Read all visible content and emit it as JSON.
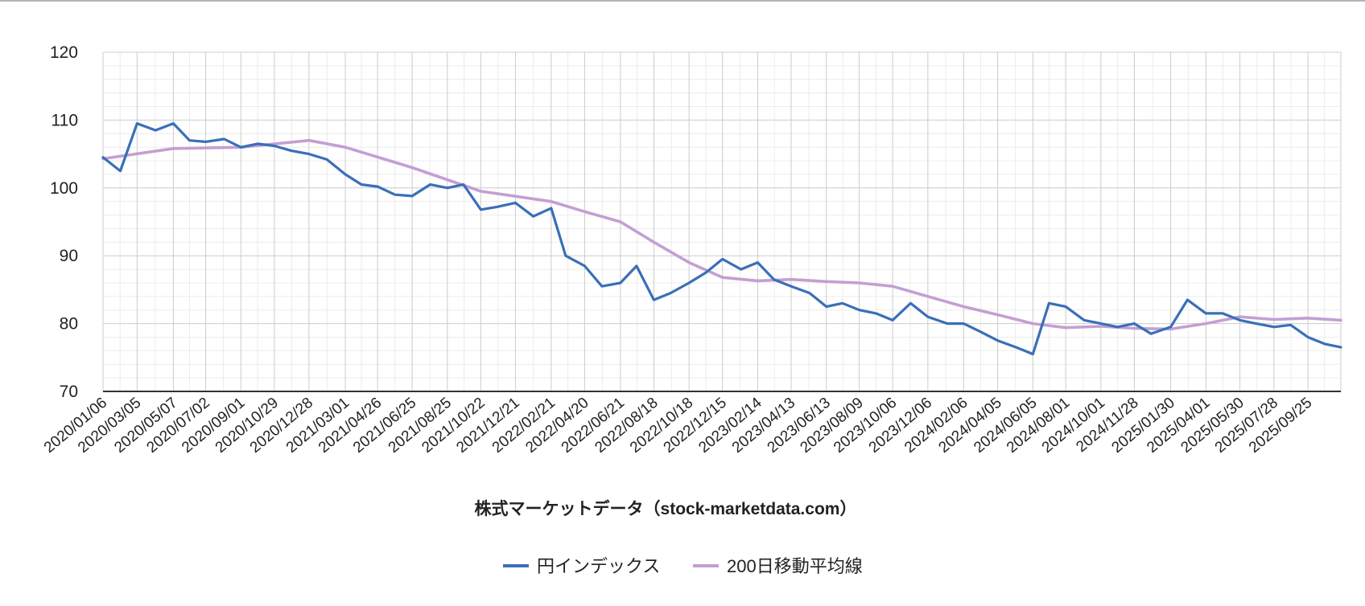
{
  "chart_data": {
    "type": "line",
    "title": "",
    "xlabel": "株式マーケットデータ（stock-marketdata.com）",
    "ylabel": "",
    "ylim": [
      70,
      120
    ],
    "y_ticks": [
      70,
      80,
      90,
      100,
      110,
      120
    ],
    "x_tick_labels": [
      "2020/01/06",
      "2020/03/05",
      "2020/05/07",
      "2020/07/02",
      "2020/09/01",
      "2020/10/29",
      "2020/12/28",
      "2021/03/01",
      "2021/04/26",
      "2021/06/25",
      "2021/08/25",
      "2021/10/22",
      "2021/12/21",
      "2022/02/21",
      "2022/04/20",
      "2022/06/21",
      "2022/08/18",
      "2022/10/18",
      "2022/12/15",
      "2023/02/14",
      "2023/04/13",
      "2023/06/13",
      "2023/08/09",
      "2023/10/06",
      "2023/12/06",
      "2024/02/06",
      "2024/04/05",
      "2024/06/05",
      "2024/08/01",
      "2024/10/01",
      "2024/11/28",
      "2025/01/30",
      "2025/04/01",
      "2025/05/30",
      "2025/07/28",
      "2025/09/25"
    ],
    "grid": true,
    "legend_position": "bottom",
    "series": [
      {
        "name": "円インデックス",
        "color": "#3a6fb8",
        "x": [
          "2020/01/06",
          "2020/02/05",
          "2020/03/05",
          "2020/04/06",
          "2020/05/07",
          "2020/06/04",
          "2020/07/02",
          "2020/08/03",
          "2020/09/01",
          "2020/09/30",
          "2020/10/29",
          "2020/11/27",
          "2020/12/28",
          "2021/01/28",
          "2021/03/01",
          "2021/03/29",
          "2021/04/26",
          "2021/05/26",
          "2021/06/25",
          "2021/07/26",
          "2021/08/25",
          "2021/09/22",
          "2021/10/22",
          "2021/11/19",
          "2021/12/21",
          "2022/01/21",
          "2022/02/21",
          "2022/03/18",
          "2022/04/20",
          "2022/05/20",
          "2022/06/21",
          "2022/07/19",
          "2022/08/18",
          "2022/09/16",
          "2022/10/18",
          "2022/11/16",
          "2022/12/15",
          "2023/01/16",
          "2023/02/14",
          "2023/03/14",
          "2023/04/13",
          "2023/05/15",
          "2023/06/13",
          "2023/07/11",
          "2023/08/09",
          "2023/09/07",
          "2023/10/06",
          "2023/11/06",
          "2023/12/06",
          "2024/01/09",
          "2024/02/06",
          "2024/03/06",
          "2024/04/05",
          "2024/05/07",
          "2024/06/05",
          "2024/07/03",
          "2024/08/01",
          "2024/09/02",
          "2024/10/01",
          "2024/10/30",
          "2024/11/28",
          "2024/12/27",
          "2025/01/30",
          "2025/02/28",
          "2025/04/01",
          "2025/04/30",
          "2025/05/30",
          "2025/06/27",
          "2025/07/28",
          "2025/08/26",
          "2025/09/25",
          "2025/10/24",
          "2025/11/21"
        ],
        "values": [
          104.5,
          102.5,
          109.5,
          108.5,
          109.5,
          107.0,
          106.8,
          107.2,
          106.0,
          106.5,
          106.2,
          105.5,
          105.0,
          104.2,
          102.0,
          100.5,
          100.2,
          99.0,
          98.8,
          100.5,
          100.0,
          100.5,
          96.8,
          97.2,
          97.8,
          95.8,
          97.0,
          90.0,
          88.5,
          85.5,
          86.0,
          88.5,
          83.5,
          84.5,
          86.0,
          87.5,
          89.5,
          88.0,
          89.0,
          86.5,
          85.5,
          84.5,
          82.5,
          83.0,
          82.0,
          81.5,
          80.5,
          83.0,
          81.0,
          80.0,
          80.0,
          78.8,
          77.5,
          76.5,
          75.5,
          83.0,
          82.5,
          80.5,
          80.0,
          79.5,
          80.0,
          78.5,
          79.5,
          83.5,
          81.5,
          81.5,
          80.5,
          80.0,
          79.5,
          79.8,
          78.0,
          77.0,
          76.5
        ]
      },
      {
        "name": "200日移動平均線",
        "color": "#c39fd3",
        "x": [
          "2020/01/06",
          "2020/05/07",
          "2020/09/01",
          "2020/12/28",
          "2021/03/01",
          "2021/06/25",
          "2021/10/22",
          "2022/02/21",
          "2022/04/20",
          "2022/06/21",
          "2022/08/18",
          "2022/10/18",
          "2022/12/15",
          "2023/02/14",
          "2023/04/13",
          "2023/06/13",
          "2023/08/09",
          "2023/10/06",
          "2023/12/06",
          "2024/02/06",
          "2024/04/05",
          "2024/06/05",
          "2024/08/01",
          "2024/10/01",
          "2024/11/28",
          "2025/01/30",
          "2025/04/01",
          "2025/05/30",
          "2025/07/28",
          "2025/09/25",
          "2025/11/21"
        ],
        "values": [
          104.3,
          105.8,
          106.0,
          107.0,
          106.0,
          103.0,
          99.5,
          98.0,
          96.5,
          95.0,
          92.0,
          89.0,
          86.8,
          86.3,
          86.5,
          86.2,
          86.0,
          85.5,
          84.0,
          82.5,
          81.3,
          80.0,
          79.4,
          79.6,
          79.3,
          79.2,
          80.0,
          81.0,
          80.6,
          80.8,
          80.5
        ]
      }
    ]
  }
}
